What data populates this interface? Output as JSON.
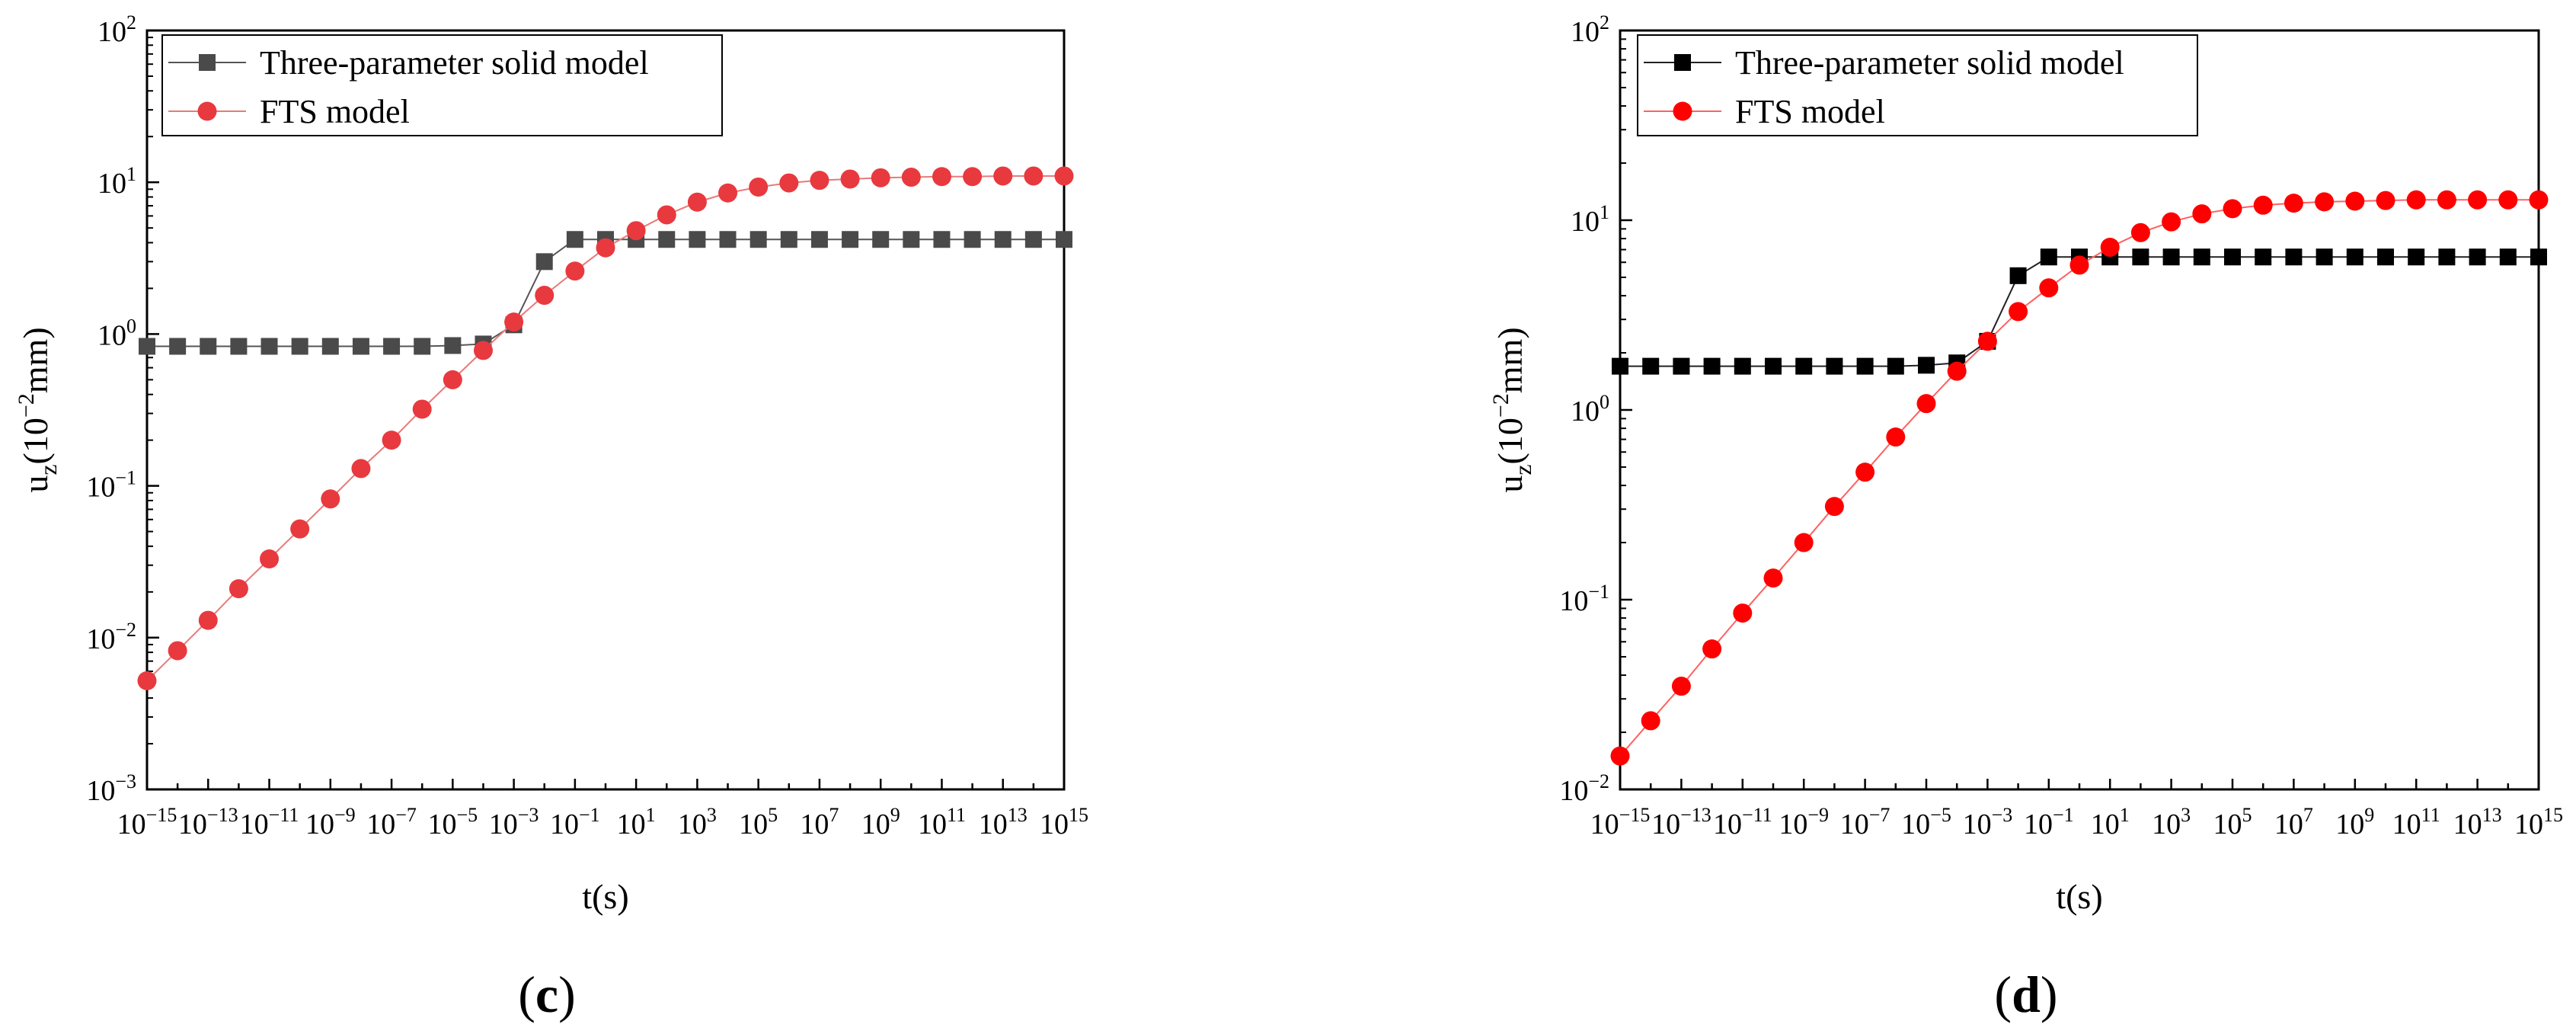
{
  "chart_data": [
    {
      "type": "line",
      "panel_label": "(c)",
      "xlabel": "t(s)",
      "ylabel_base": "u",
      "ylabel_sub": "z",
      "ylabel_unit_pre": "(10",
      "ylabel_unit_exp": "−2",
      "ylabel_unit_post": "mm)",
      "x_scale": "log",
      "y_scale": "log",
      "xlim_exp": [
        -15,
        15
      ],
      "ylim_exp": [
        -3,
        2
      ],
      "x_tick_exps": [
        -15,
        -13,
        -11,
        -9,
        -7,
        -5,
        -3,
        -1,
        1,
        3,
        5,
        7,
        9,
        11,
        13,
        15
      ],
      "y_tick_exps": [
        -3,
        -2,
        -1,
        0,
        1,
        2
      ],
      "grid": false,
      "legend_position": "top-left",
      "series": [
        {
          "name": "Three-parameter solid model",
          "marker": "square",
          "color": "#4a4a4a",
          "line_color": "#555555",
          "x_exp": [
            -15,
            -14,
            -13,
            -12,
            -11,
            -10,
            -9,
            -8,
            -7,
            -6,
            -5,
            -4,
            -3,
            -2,
            -1,
            0,
            1,
            2,
            3,
            4,
            5,
            6,
            7,
            8,
            9,
            10,
            11,
            12,
            13,
            14,
            15
          ],
          "y": [
            0.83,
            0.83,
            0.83,
            0.83,
            0.83,
            0.83,
            0.83,
            0.83,
            0.83,
            0.83,
            0.84,
            0.86,
            1.15,
            3.0,
            4.2,
            4.2,
            4.2,
            4.2,
            4.2,
            4.2,
            4.2,
            4.2,
            4.2,
            4.2,
            4.2,
            4.2,
            4.2,
            4.2,
            4.2,
            4.2,
            4.2
          ]
        },
        {
          "name": "FTS model",
          "marker": "circle",
          "color": "#e8393f",
          "line_color": "#e87a7a",
          "x_exp": [
            -15,
            -14,
            -13,
            -12,
            -11,
            -10,
            -9,
            -8,
            -7,
            -6,
            -5,
            -4,
            -3,
            -2,
            -1,
            0,
            1,
            2,
            3,
            4,
            5,
            6,
            7,
            8,
            9,
            10,
            11,
            12,
            13,
            14,
            15
          ],
          "y": [
            0.0052,
            0.0082,
            0.013,
            0.021,
            0.033,
            0.052,
            0.082,
            0.13,
            0.2,
            0.32,
            0.5,
            0.78,
            1.2,
            1.8,
            2.6,
            3.7,
            4.8,
            6.1,
            7.4,
            8.5,
            9.3,
            9.9,
            10.3,
            10.5,
            10.7,
            10.8,
            10.9,
            10.9,
            11.0,
            11.0,
            11.0
          ]
        }
      ]
    },
    {
      "type": "line",
      "panel_label": "(d)",
      "xlabel": "t(s)",
      "ylabel_base": "u",
      "ylabel_sub": "z",
      "ylabel_unit_pre": "(10",
      "ylabel_unit_exp": "−2",
      "ylabel_unit_post": "mm)",
      "x_scale": "log",
      "y_scale": "log",
      "xlim_exp": [
        -15,
        15
      ],
      "ylim_exp": [
        -2,
        2
      ],
      "x_tick_exps": [
        -15,
        -13,
        -11,
        -9,
        -7,
        -5,
        -3,
        -1,
        1,
        3,
        5,
        7,
        9,
        11,
        13,
        15
      ],
      "y_tick_exps": [
        -2,
        -1,
        0,
        1,
        2
      ],
      "grid": false,
      "legend_position": "top-left",
      "series": [
        {
          "name": "Three-parameter solid model",
          "marker": "square",
          "color": "#000000",
          "line_color": "#222222",
          "x_exp": [
            -15,
            -14,
            -13,
            -12,
            -11,
            -10,
            -9,
            -8,
            -7,
            -6,
            -5,
            -4,
            -3,
            -2,
            -1,
            0,
            1,
            2,
            3,
            4,
            5,
            6,
            7,
            8,
            9,
            10,
            11,
            12,
            13,
            14,
            15
          ],
          "y": [
            1.7,
            1.7,
            1.7,
            1.7,
            1.7,
            1.7,
            1.7,
            1.7,
            1.7,
            1.7,
            1.72,
            1.77,
            2.3,
            5.1,
            6.4,
            6.4,
            6.4,
            6.4,
            6.4,
            6.4,
            6.4,
            6.4,
            6.4,
            6.4,
            6.4,
            6.4,
            6.4,
            6.4,
            6.4,
            6.4,
            6.4
          ]
        },
        {
          "name": "FTS model",
          "marker": "circle",
          "color": "#ff0000",
          "line_color": "#ff6060",
          "x_exp": [
            -15,
            -14,
            -13,
            -12,
            -11,
            -10,
            -9,
            -8,
            -7,
            -6,
            -5,
            -4,
            -3,
            -2,
            -1,
            0,
            1,
            2,
            3,
            4,
            5,
            6,
            7,
            8,
            9,
            10,
            11,
            12,
            13,
            14,
            15
          ],
          "y": [
            0.015,
            0.023,
            0.035,
            0.055,
            0.085,
            0.13,
            0.2,
            0.31,
            0.47,
            0.72,
            1.08,
            1.6,
            2.3,
            3.3,
            4.4,
            5.8,
            7.2,
            8.6,
            9.8,
            10.8,
            11.5,
            12.0,
            12.3,
            12.5,
            12.6,
            12.7,
            12.8,
            12.8,
            12.8,
            12.8,
            12.8
          ]
        }
      ]
    }
  ]
}
